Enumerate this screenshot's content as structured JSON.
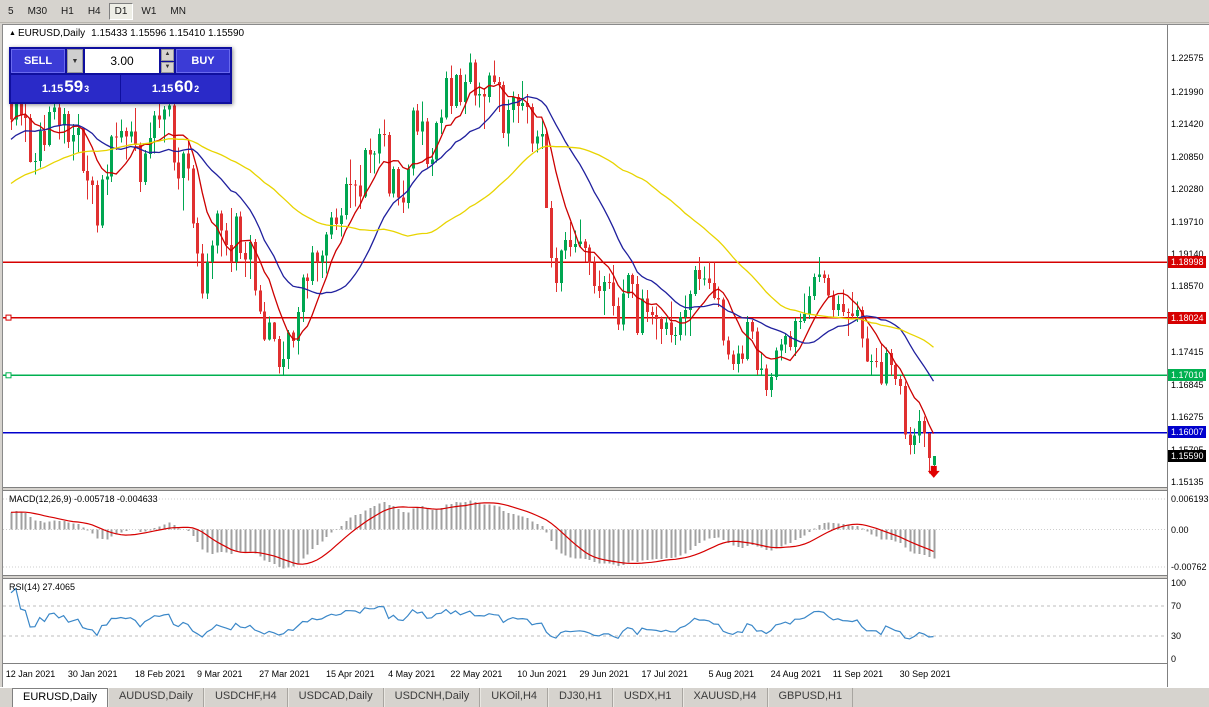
{
  "toolbar": {
    "timeframes": [
      "5",
      "M30",
      "H1",
      "H4",
      "D1",
      "W1",
      "MN"
    ],
    "active": "D1"
  },
  "chart_header": {
    "symbol": "EURUSD,Daily",
    "ohlc_text": "1.15433 1.15596 1.15410 1.15590"
  },
  "trade_panel": {
    "sell_label": "SELL",
    "buy_label": "BUY",
    "lot": "3.00",
    "sell_price": {
      "big": "1.15",
      "pips": "59",
      "frac": "3"
    },
    "buy_price": {
      "big": "1.15",
      "pips": "60",
      "frac": "2"
    }
  },
  "price_scale": {
    "labels": [
      "1.22575",
      "1.21990",
      "1.21420",
      "1.20850",
      "1.20280",
      "1.19710",
      "1.19140",
      "1.18570",
      "1.17415",
      "1.16845",
      "1.16275",
      "1.15705",
      "1.15135"
    ]
  },
  "time_scale": {
    "labels": [
      {
        "text": "12 Jan 2021",
        "i": 1
      },
      {
        "text": "30 Jan 2021",
        "i": 14
      },
      {
        "text": "18 Feb 2021",
        "i": 28
      },
      {
        "text": "9 Mar 2021",
        "i": 41
      },
      {
        "text": "27 Mar 2021",
        "i": 54
      },
      {
        "text": "15 Apr 2021",
        "i": 68
      },
      {
        "text": "4 May 2021",
        "i": 81
      },
      {
        "text": "22 May 2021",
        "i": 94
      },
      {
        "text": "10 Jun 2021",
        "i": 108
      },
      {
        "text": "29 Jun 2021",
        "i": 121
      },
      {
        "text": "17 Jul 2021",
        "i": 134
      },
      {
        "text": "5 Aug 2021",
        "i": 148
      },
      {
        "text": "24 Aug 2021",
        "i": 161
      },
      {
        "text": "11 Sep 2021",
        "i": 174
      },
      {
        "text": "30 Sep 2021",
        "i": 188
      }
    ]
  },
  "macd_panel": {
    "label": "MACD(12,26,9) -0.005718 -0.004633",
    "params": [
      12,
      26,
      9
    ],
    "axis": [
      {
        "text": "0.006193",
        "v": 0.006193
      },
      {
        "text": "0.00",
        "v": 0
      },
      {
        "text": "-0.00762",
        "v": -0.00762
      }
    ],
    "histogram_color": "#a0a0a0",
    "signal_color": "#d60000"
  },
  "rsi_panel": {
    "label": "RSI(14) 27.4065",
    "period": 14,
    "axis": [
      {
        "text": "100",
        "v": 100
      },
      {
        "text": "70",
        "v": 70
      },
      {
        "text": "30",
        "v": 30
      },
      {
        "text": "0",
        "v": 0
      }
    ],
    "levels": [
      70,
      30
    ],
    "line_color": "#3a87c8"
  },
  "tabs": [
    {
      "label": "EURUSD,Daily",
      "active": true
    },
    {
      "label": "AUDUSD,Daily",
      "active": false
    },
    {
      "label": "USDCHF,H4",
      "active": false
    },
    {
      "label": "USDCAD,Daily",
      "active": false
    },
    {
      "label": "USDCNH,Daily",
      "active": false
    },
    {
      "label": "UKOil,H4",
      "active": false
    },
    {
      "label": "DJ30,H1",
      "active": false
    },
    {
      "label": "USDX,H1",
      "active": false
    },
    {
      "label": "XAUUSD,H4",
      "active": false
    },
    {
      "label": "GBPUSD,H1",
      "active": false
    }
  ],
  "chart_data": {
    "type": "candlestick",
    "symbol": "EURUSD",
    "timeframe": "Daily",
    "ylim": [
      1.1505,
      1.2316
    ],
    "up_color": "#00a651",
    "down_color": "#e03030",
    "overlays": [
      {
        "name": "ma-fast",
        "period": 8,
        "color": "#cc0000"
      },
      {
        "name": "ma-mid",
        "period": 20,
        "color": "#20209e"
      },
      {
        "name": "ma-slow",
        "period": 50,
        "color": "#e8d400"
      }
    ],
    "hlines": [
      {
        "value": 1.18998,
        "label": "1.18998",
        "color": "#d60000",
        "anchor": false
      },
      {
        "value": 1.18024,
        "label": "1.18024",
        "color": "#d60000",
        "anchor": true
      },
      {
        "value": 1.1701,
        "label": "1.17010",
        "color": "#00b050",
        "anchor": true
      },
      {
        "value": 1.16007,
        "label": "1.16007",
        "color": "#0000cc",
        "anchor": false
      }
    ],
    "current_price": {
      "value": 1.1559,
      "label": "1.15590",
      "color": "#000000"
    },
    "sell_arrow": {
      "index": 192,
      "price": 1.1542,
      "color": "#e00000"
    },
    "candles": [
      [
        1.222,
        1.2223,
        1.2132,
        1.215
      ],
      [
        1.215,
        1.221,
        1.214,
        1.2207
      ],
      [
        1.2207,
        1.2222,
        1.214,
        1.2158
      ],
      [
        1.2158,
        1.218,
        1.2111,
        1.2153
      ],
      [
        1.2153,
        1.216,
        1.2075,
        1.2076
      ],
      [
        1.2076,
        1.2091,
        1.2054,
        1.2077
      ],
      [
        1.2077,
        1.2145,
        1.2066,
        1.213
      ],
      [
        1.213,
        1.2158,
        1.2095,
        1.2105
      ],
      [
        1.2105,
        1.2173,
        1.2103,
        1.2163
      ],
      [
        1.2163,
        1.2185,
        1.215,
        1.2171
      ],
      [
        1.2171,
        1.218,
        1.2115,
        1.214
      ],
      [
        1.214,
        1.217,
        1.2108,
        1.216
      ],
      [
        1.216,
        1.2165,
        1.21,
        1.2111
      ],
      [
        1.2111,
        1.2142,
        1.2078,
        1.2123
      ],
      [
        1.2123,
        1.216,
        1.2093,
        1.2135
      ],
      [
        1.2135,
        1.2136,
        1.2056,
        1.206
      ],
      [
        1.206,
        1.2087,
        1.201,
        1.2043
      ],
      [
        1.2043,
        1.205,
        1.2002,
        1.2035
      ],
      [
        1.2035,
        1.2043,
        1.1952,
        1.1964
      ],
      [
        1.1964,
        1.2053,
        1.196,
        1.2045
      ],
      [
        1.2045,
        1.2071,
        1.2018,
        1.205
      ],
      [
        1.205,
        1.2123,
        1.204,
        1.212
      ],
      [
        1.212,
        1.2145,
        1.2097,
        1.2119
      ],
      [
        1.2119,
        1.215,
        1.211,
        1.213
      ],
      [
        1.213,
        1.2136,
        1.208,
        1.212
      ],
      [
        1.212,
        1.2147,
        1.211,
        1.2129
      ],
      [
        1.2129,
        1.217,
        1.2095,
        1.2105
      ],
      [
        1.2105,
        1.211,
        1.2023,
        1.204
      ],
      [
        1.204,
        1.2097,
        1.2035,
        1.209
      ],
      [
        1.209,
        1.2145,
        1.2082,
        1.2118
      ],
      [
        1.2118,
        1.2165,
        1.209,
        1.2157
      ],
      [
        1.2157,
        1.218,
        1.2135,
        1.215
      ],
      [
        1.215,
        1.2174,
        1.211,
        1.2168
      ],
      [
        1.2168,
        1.2243,
        1.2155,
        1.2175
      ],
      [
        1.2175,
        1.2183,
        1.2061,
        1.2075
      ],
      [
        1.2075,
        1.2101,
        1.2027,
        1.2047
      ],
      [
        1.2047,
        1.2094,
        1.199,
        1.209
      ],
      [
        1.209,
        1.2113,
        1.2043,
        1.2064
      ],
      [
        1.2064,
        1.207,
        1.196,
        1.1968
      ],
      [
        1.1968,
        1.1978,
        1.1892,
        1.1915
      ],
      [
        1.1915,
        1.1932,
        1.1836,
        1.1845
      ],
      [
        1.1845,
        1.1915,
        1.1835,
        1.19
      ],
      [
        1.19,
        1.1938,
        1.187,
        1.1929
      ],
      [
        1.1929,
        1.199,
        1.1915,
        1.1985
      ],
      [
        1.1985,
        1.199,
        1.191,
        1.1955
      ],
      [
        1.1955,
        1.1968,
        1.1911,
        1.193
      ],
      [
        1.193,
        1.1995,
        1.1882,
        1.19
      ],
      [
        1.19,
        1.1986,
        1.1885,
        1.198
      ],
      [
        1.198,
        1.1989,
        1.1905,
        1.1916
      ],
      [
        1.1916,
        1.1935,
        1.1874,
        1.1904
      ],
      [
        1.1904,
        1.1947,
        1.187,
        1.1935
      ],
      [
        1.1935,
        1.194,
        1.1841,
        1.185
      ],
      [
        1.185,
        1.186,
        1.1809,
        1.1813
      ],
      [
        1.1813,
        1.183,
        1.1761,
        1.1764
      ],
      [
        1.1764,
        1.1804,
        1.1762,
        1.1794
      ],
      [
        1.1794,
        1.1795,
        1.176,
        1.1765
      ],
      [
        1.1765,
        1.177,
        1.1704,
        1.1716
      ],
      [
        1.1716,
        1.176,
        1.17,
        1.173
      ],
      [
        1.173,
        1.1781,
        1.1712,
        1.1776
      ],
      [
        1.1776,
        1.178,
        1.175,
        1.1761
      ],
      [
        1.1761,
        1.1821,
        1.1738,
        1.1812
      ],
      [
        1.1812,
        1.1878,
        1.1795,
        1.1873
      ],
      [
        1.1873,
        1.188,
        1.1836,
        1.1867
      ],
      [
        1.1867,
        1.1928,
        1.186,
        1.1917
      ],
      [
        1.1917,
        1.192,
        1.1866,
        1.1899
      ],
      [
        1.1899,
        1.192,
        1.1872,
        1.1911
      ],
      [
        1.1911,
        1.1953,
        1.188,
        1.1948
      ],
      [
        1.1948,
        1.1988,
        1.194,
        1.1978
      ],
      [
        1.1978,
        1.1994,
        1.1956,
        1.1967
      ],
      [
        1.1967,
        1.1995,
        1.1945,
        1.1982
      ],
      [
        1.1982,
        1.2048,
        1.1975,
        1.2037
      ],
      [
        1.2037,
        1.208,
        1.1995,
        1.2036
      ],
      [
        1.2036,
        1.2044,
        1.1997,
        1.2034
      ],
      [
        1.2034,
        1.207,
        1.1993,
        1.2015
      ],
      [
        1.2015,
        1.21,
        1.2012,
        1.2097
      ],
      [
        1.2097,
        1.2117,
        1.2056,
        1.2089
      ],
      [
        1.2089,
        1.2095,
        1.2055,
        1.209
      ],
      [
        1.209,
        1.2134,
        1.2073,
        1.2125
      ],
      [
        1.2125,
        1.215,
        1.2103,
        1.2123
      ],
      [
        1.2123,
        1.2128,
        1.2015,
        1.202
      ],
      [
        1.202,
        1.2068,
        1.2013,
        1.2063
      ],
      [
        1.2063,
        1.2067,
        1.1999,
        1.2013
      ],
      [
        1.2013,
        1.2043,
        1.1986,
        1.2004
      ],
      [
        1.2004,
        1.2071,
        1.1994,
        1.2064
      ],
      [
        1.2064,
        1.2171,
        1.2052,
        1.2166
      ],
      [
        1.2166,
        1.2177,
        1.2123,
        1.2129
      ],
      [
        1.2129,
        1.2182,
        1.2105,
        1.2147
      ],
      [
        1.2147,
        1.2153,
        1.2066,
        1.2072
      ],
      [
        1.2072,
        1.21,
        1.2051,
        1.208
      ],
      [
        1.208,
        1.2147,
        1.2075,
        1.2144
      ],
      [
        1.2144,
        1.2168,
        1.2125,
        1.2154
      ],
      [
        1.2154,
        1.2234,
        1.215,
        1.2223
      ],
      [
        1.2223,
        1.2245,
        1.216,
        1.2174
      ],
      [
        1.2174,
        1.223,
        1.217,
        1.2228
      ],
      [
        1.2228,
        1.224,
        1.2175,
        1.2181
      ],
      [
        1.2181,
        1.2229,
        1.216,
        1.2216
      ],
      [
        1.2216,
        1.2266,
        1.2212,
        1.225
      ],
      [
        1.225,
        1.2255,
        1.2175,
        1.2192
      ],
      [
        1.2192,
        1.2215,
        1.2171,
        1.2195
      ],
      [
        1.2195,
        1.2205,
        1.2133,
        1.219
      ],
      [
        1.219,
        1.2233,
        1.218,
        1.2227
      ],
      [
        1.2227,
        1.2254,
        1.2212,
        1.2216
      ],
      [
        1.2216,
        1.2225,
        1.2163,
        1.2211
      ],
      [
        1.2211,
        1.2217,
        1.2118,
        1.2126
      ],
      [
        1.2126,
        1.2185,
        1.2103,
        1.2167
      ],
      [
        1.2167,
        1.2199,
        1.2145,
        1.219
      ],
      [
        1.219,
        1.2195,
        1.2144,
        1.2174
      ],
      [
        1.2174,
        1.2218,
        1.2166,
        1.2179
      ],
      [
        1.2179,
        1.2195,
        1.2143,
        1.2172
      ],
      [
        1.2172,
        1.2178,
        1.2093,
        1.2108
      ],
      [
        1.2108,
        1.2131,
        1.2092,
        1.212
      ],
      [
        1.212,
        1.2148,
        1.2098,
        1.2125
      ],
      [
        1.2125,
        1.213,
        1.1995,
        1.1995
      ],
      [
        1.1995,
        1.2007,
        1.189,
        1.1907
      ],
      [
        1.1907,
        1.1925,
        1.1847,
        1.1863
      ],
      [
        1.1863,
        1.1922,
        1.1848,
        1.192
      ],
      [
        1.192,
        1.1953,
        1.1905,
        1.1939
      ],
      [
        1.1939,
        1.197,
        1.191,
        1.1926
      ],
      [
        1.1926,
        1.1955,
        1.1917,
        1.1932
      ],
      [
        1.1932,
        1.1975,
        1.1925,
        1.1936
      ],
      [
        1.1936,
        1.194,
        1.1901,
        1.1925
      ],
      [
        1.1925,
        1.1931,
        1.1877,
        1.1898
      ],
      [
        1.1898,
        1.191,
        1.1845,
        1.1858
      ],
      [
        1.1858,
        1.1885,
        1.1837,
        1.1849
      ],
      [
        1.1849,
        1.1875,
        1.1807,
        1.1865
      ],
      [
        1.1865,
        1.188,
        1.1853,
        1.1864
      ],
      [
        1.1864,
        1.1895,
        1.1806,
        1.1823
      ],
      [
        1.1823,
        1.1838,
        1.1781,
        1.179
      ],
      [
        1.179,
        1.1869,
        1.178,
        1.1845
      ],
      [
        1.1845,
        1.1881,
        1.1837,
        1.1877
      ],
      [
        1.1877,
        1.188,
        1.1837,
        1.1861
      ],
      [
        1.1861,
        1.1875,
        1.1772,
        1.1775
      ],
      [
        1.1775,
        1.1852,
        1.1772,
        1.1836
      ],
      [
        1.1836,
        1.1851,
        1.1795,
        1.1812
      ],
      [
        1.1812,
        1.1822,
        1.179,
        1.1807
      ],
      [
        1.1807,
        1.1822,
        1.1764,
        1.18
      ],
      [
        1.18,
        1.1804,
        1.1756,
        1.1782
      ],
      [
        1.1782,
        1.1803,
        1.1772,
        1.1794
      ],
      [
        1.1794,
        1.1831,
        1.1759,
        1.1772
      ],
      [
        1.1772,
        1.1786,
        1.1754,
        1.1772
      ],
      [
        1.1772,
        1.1812,
        1.1762,
        1.1803
      ],
      [
        1.1803,
        1.1841,
        1.1771,
        1.1816
      ],
      [
        1.1816,
        1.185,
        1.177,
        1.1844
      ],
      [
        1.1844,
        1.1893,
        1.184,
        1.1886
      ],
      [
        1.1886,
        1.1909,
        1.1851,
        1.187
      ],
      [
        1.187,
        1.1892,
        1.1859,
        1.1871
      ],
      [
        1.1871,
        1.19,
        1.1853,
        1.1863
      ],
      [
        1.1863,
        1.1899,
        1.1834,
        1.1837
      ],
      [
        1.1837,
        1.1857,
        1.1821,
        1.1834
      ],
      [
        1.1834,
        1.1838,
        1.1753,
        1.1762
      ],
      [
        1.1762,
        1.1769,
        1.1729,
        1.1738
      ],
      [
        1.1738,
        1.1745,
        1.171,
        1.1721
      ],
      [
        1.1721,
        1.1753,
        1.1706,
        1.1739
      ],
      [
        1.1739,
        1.1753,
        1.1722,
        1.173
      ],
      [
        1.173,
        1.1805,
        1.1727,
        1.1795
      ],
      [
        1.1795,
        1.1798,
        1.1765,
        1.1778
      ],
      [
        1.1778,
        1.1785,
        1.1702,
        1.171
      ],
      [
        1.171,
        1.1742,
        1.17,
        1.1713
      ],
      [
        1.1713,
        1.172,
        1.1665,
        1.1675
      ],
      [
        1.1675,
        1.1705,
        1.1663,
        1.1698
      ],
      [
        1.1698,
        1.175,
        1.1693,
        1.1745
      ],
      [
        1.1745,
        1.1765,
        1.1727,
        1.1755
      ],
      [
        1.1755,
        1.1775,
        1.174,
        1.177
      ],
      [
        1.177,
        1.1779,
        1.1745,
        1.1751
      ],
      [
        1.1751,
        1.1802,
        1.1735,
        1.1796
      ],
      [
        1.1796,
        1.181,
        1.1782,
        1.1796
      ],
      [
        1.1796,
        1.1845,
        1.1793,
        1.1809
      ],
      [
        1.1809,
        1.1857,
        1.18,
        1.184
      ],
      [
        1.184,
        1.188,
        1.1833,
        1.1874
      ],
      [
        1.1874,
        1.1909,
        1.1865,
        1.1878
      ],
      [
        1.1878,
        1.1885,
        1.1863,
        1.1872
      ],
      [
        1.1872,
        1.1878,
        1.1837,
        1.1841
      ],
      [
        1.1841,
        1.185,
        1.1802,
        1.1816
      ],
      [
        1.1816,
        1.1841,
        1.1805,
        1.1826
      ],
      [
        1.1826,
        1.1852,
        1.1805,
        1.1812
      ],
      [
        1.1812,
        1.1818,
        1.177,
        1.181
      ],
      [
        1.181,
        1.1847,
        1.18,
        1.1805
      ],
      [
        1.1805,
        1.1831,
        1.1795,
        1.1816
      ],
      [
        1.1816,
        1.1822,
        1.175,
        1.1766
      ],
      [
        1.1766,
        1.1787,
        1.1724,
        1.1725
      ],
      [
        1.1725,
        1.1738,
        1.17,
        1.1726
      ],
      [
        1.1726,
        1.1749,
        1.1715,
        1.1724
      ],
      [
        1.1724,
        1.1756,
        1.1684,
        1.1687
      ],
      [
        1.1687,
        1.175,
        1.1683,
        1.174
      ],
      [
        1.174,
        1.1747,
        1.1701,
        1.1719
      ],
      [
        1.1719,
        1.1722,
        1.1684,
        1.1695
      ],
      [
        1.1695,
        1.17,
        1.1667,
        1.1682
      ],
      [
        1.1682,
        1.169,
        1.1589,
        1.1597
      ],
      [
        1.1597,
        1.161,
        1.1562,
        1.1579
      ],
      [
        1.1579,
        1.1608,
        1.1563,
        1.1595
      ],
      [
        1.1595,
        1.164,
        1.1582,
        1.1621
      ],
      [
        1.1621,
        1.1629,
        1.1575,
        1.1599
      ],
      [
        1.1599,
        1.16,
        1.1529,
        1.1556
      ],
      [
        1.15433,
        1.15596,
        1.1541,
        1.1559
      ]
    ]
  }
}
